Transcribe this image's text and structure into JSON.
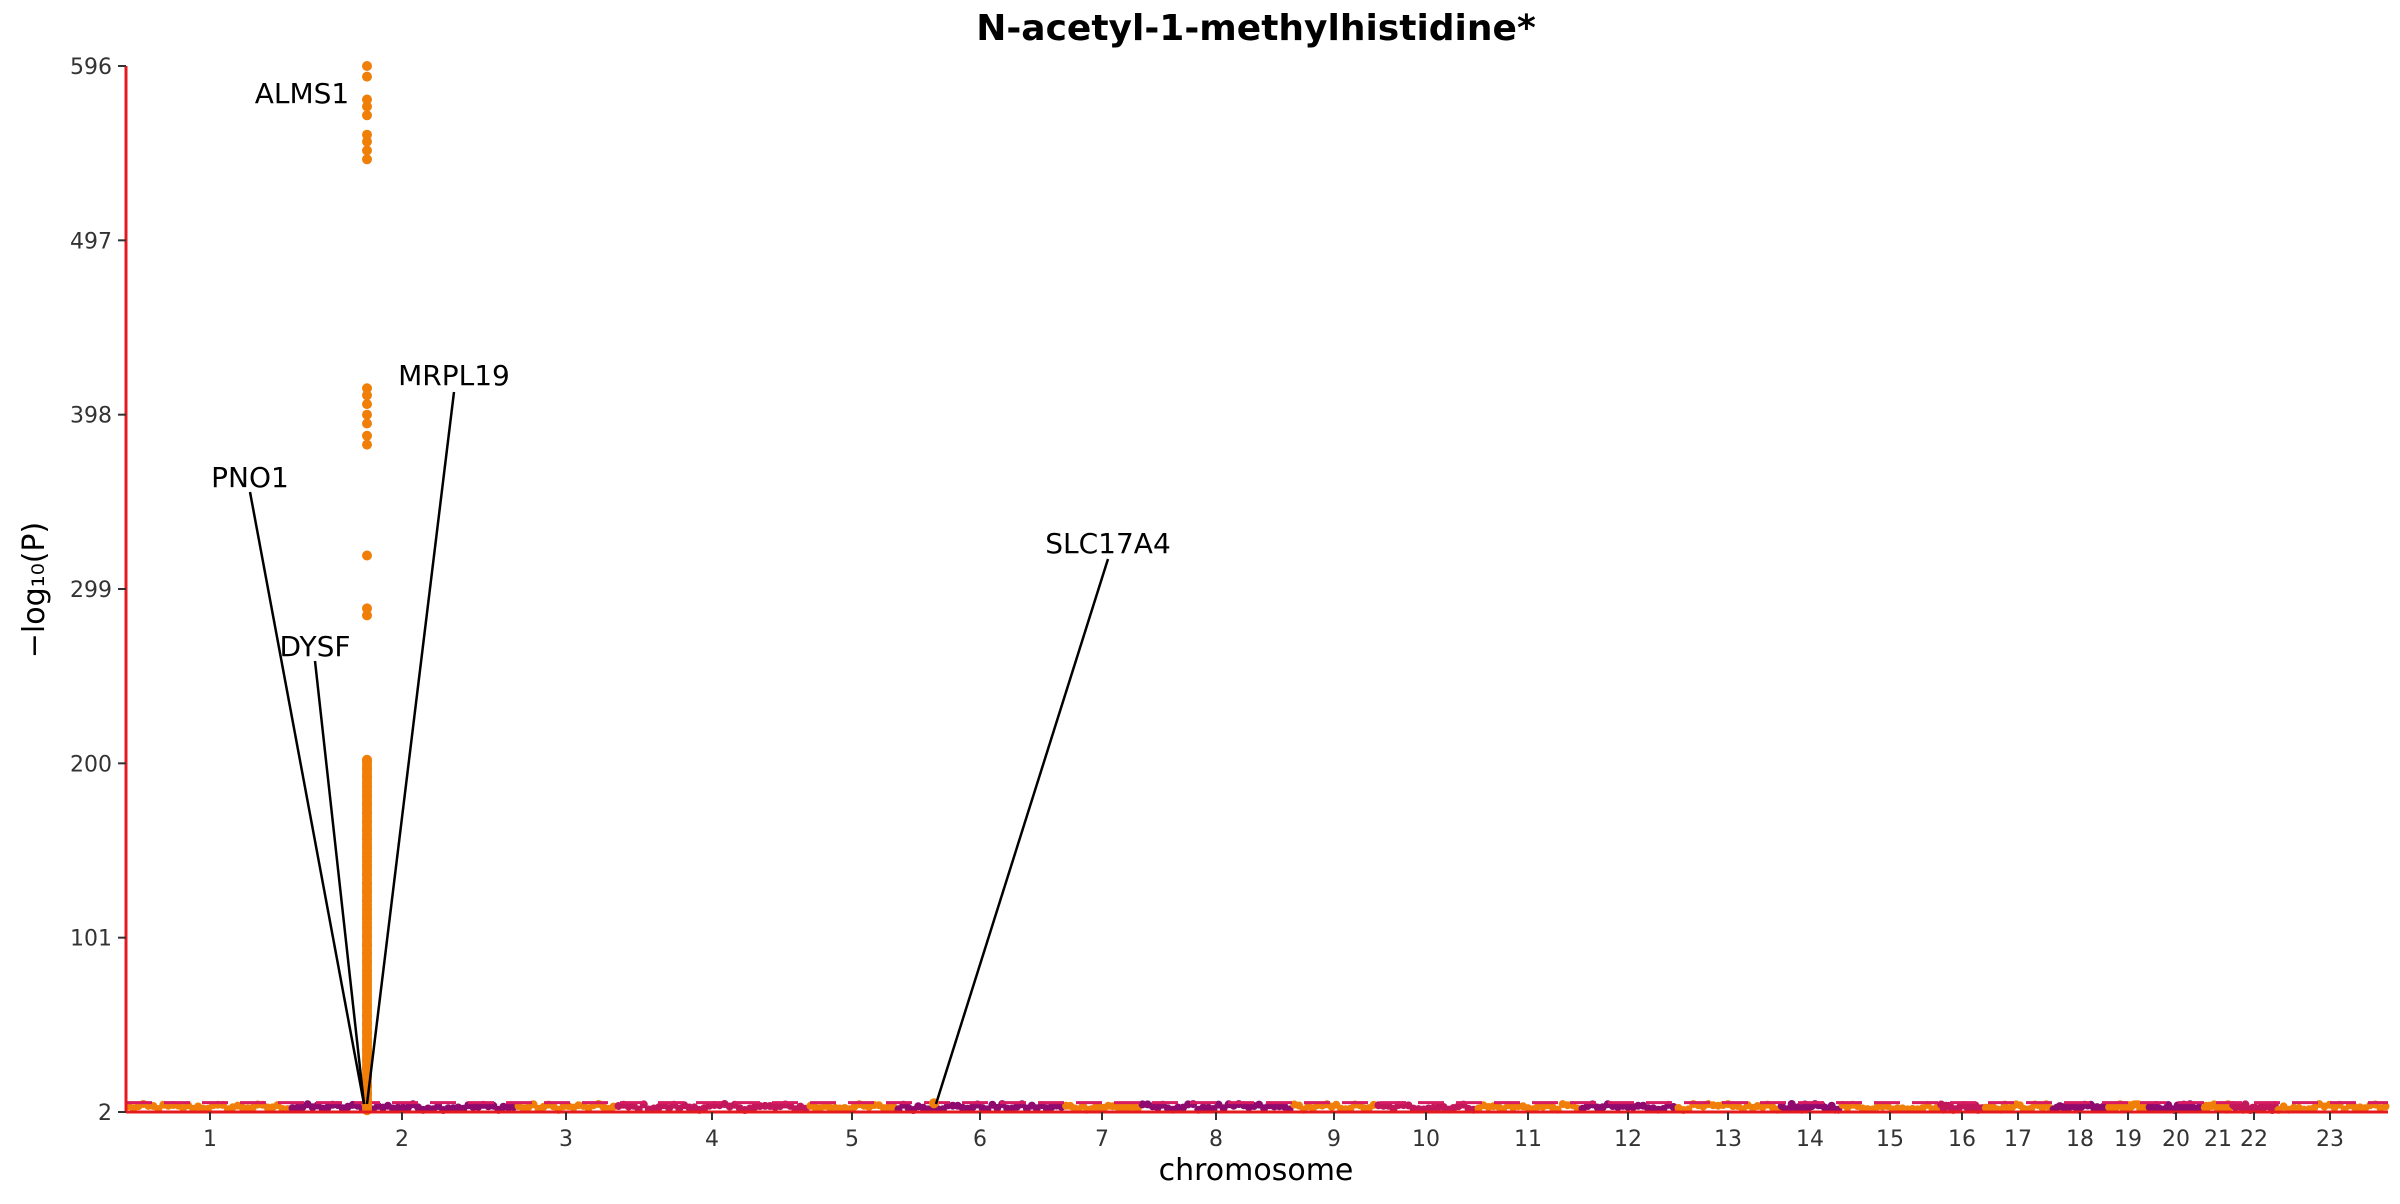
{
  "chart_data": {
    "type": "scatter",
    "title": "N-acetyl-1-methylhistidine*",
    "xlabel": "chromosome",
    "ylabel": "−log₁₀(P)",
    "ylim": [
      2,
      596
    ],
    "y_ticks": [
      "2",
      "101",
      "200",
      "299",
      "398",
      "497",
      "596"
    ],
    "x_ticks": [
      "1",
      "2",
      "3",
      "4",
      "5",
      "6",
      "7",
      "8",
      "9",
      "10",
      "11",
      "12",
      "13",
      "14",
      "15",
      "16",
      "17",
      "18",
      "19",
      "20",
      "21",
      "22",
      "23"
    ],
    "chromosome_colors": [
      "#f07f09",
      "#8e0a6f",
      "#c2185b"
    ],
    "highlight_color": "#f07f09",
    "significance_line_color": "#d81b60",
    "significance_y": 7.3,
    "grid": false,
    "top_hit_peak": {
      "chromosome": "2",
      "y_values": [
        596,
        590,
        577,
        573,
        568,
        557,
        553,
        548,
        543,
        413,
        409,
        404,
        398,
        393,
        386,
        381,
        318,
        288,
        284,
        202,
        197,
        192,
        187,
        182,
        177,
        172,
        167,
        162,
        157,
        152,
        147,
        142,
        137,
        132,
        127,
        122,
        117,
        112,
        107,
        102,
        97,
        92,
        87,
        82,
        77,
        72,
        67,
        62,
        57,
        52,
        47,
        42,
        37,
        32,
        27,
        22,
        17,
        12,
        8,
        5
      ]
    },
    "annotations": [
      {
        "label": "ALMS1",
        "chromosome": "2",
        "y": 596
      },
      {
        "label": "MRPL19",
        "chromosome": "2",
        "y": 10
      },
      {
        "label": "PNO1",
        "chromosome": "2",
        "y": 6
      },
      {
        "label": "DYSF",
        "chromosome": "2",
        "y": 6
      },
      {
        "label": "SLC17A4",
        "chromosome": "6",
        "y": 8
      }
    ]
  }
}
